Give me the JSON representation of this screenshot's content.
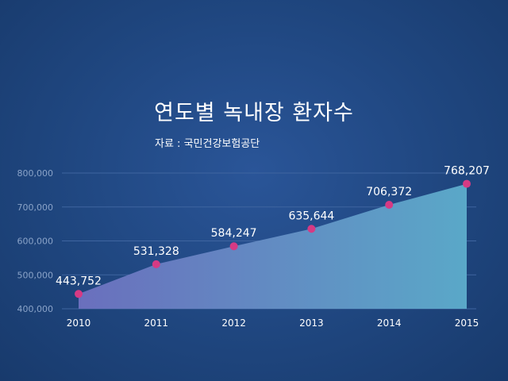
{
  "chart_data": {
    "type": "area",
    "title": "연도별 녹내장 환자수",
    "subtitle": "자료 : 국민건강보험공단",
    "categories": [
      "2010",
      "2011",
      "2012",
      "2013",
      "2014",
      "2015"
    ],
    "values": [
      443752,
      531328,
      584247,
      635644,
      706372,
      768207
    ],
    "data_labels": [
      "443,752",
      "531,328",
      "584,247",
      "635,644",
      "706,372",
      "768,207"
    ],
    "y_ticks": [
      400000,
      500000,
      600000,
      700000,
      800000
    ],
    "y_tick_labels": [
      "400,000",
      "500,000",
      "600,000",
      "700,000",
      "800,000"
    ],
    "ylim": [
      400000,
      800000
    ],
    "grid": true,
    "legend": "none",
    "colors": {
      "area_start": "#6a6fbd",
      "area_end": "#5aa8c8",
      "marker": "#d63a84",
      "grid": "#3f65a0",
      "tick_text": "#8aa3c8",
      "label_text": "#ffffff"
    }
  }
}
